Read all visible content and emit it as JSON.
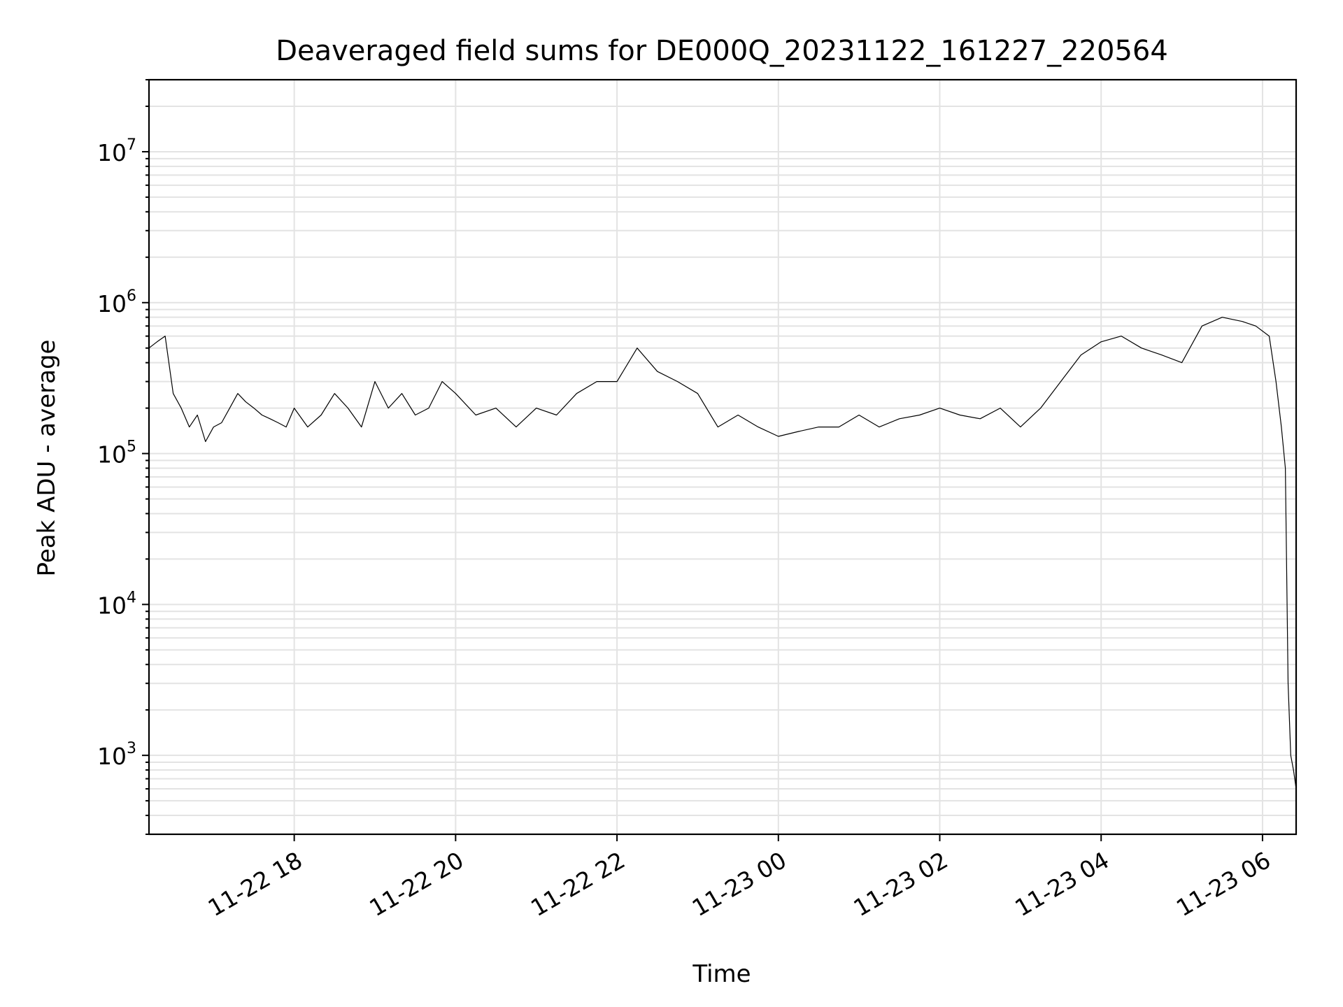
{
  "chart_data": {
    "type": "line",
    "title": "Deaveraged field sums for DE000Q_20231122_161227_220564",
    "xlabel": "Time",
    "ylabel": "Peak ADU - average",
    "yscale": "log",
    "xlim": [
      "2023-11-22 16:12",
      "2023-11-23 06:25"
    ],
    "ylim": [
      300,
      30000000
    ],
    "grid": true,
    "x_ticks": [
      {
        "value": "2023-11-22 18:00",
        "label": "11-22 18"
      },
      {
        "value": "2023-11-22 20:00",
        "label": "11-22 20"
      },
      {
        "value": "2023-11-22 22:00",
        "label": "11-22 22"
      },
      {
        "value": "2023-11-23 00:00",
        "label": "11-23 00"
      },
      {
        "value": "2023-11-23 02:00",
        "label": "11-23 02"
      },
      {
        "value": "2023-11-23 04:00",
        "label": "11-23 04"
      },
      {
        "value": "2023-11-23 06:00",
        "label": "11-23 06"
      }
    ],
    "y_ticks": [
      {
        "value": 1000,
        "base": "10",
        "exp": "3"
      },
      {
        "value": 10000,
        "base": "10",
        "exp": "4"
      },
      {
        "value": 100000,
        "base": "10",
        "exp": "5"
      },
      {
        "value": 1000000,
        "base": "10",
        "exp": "6"
      },
      {
        "value": 10000000,
        "base": "10",
        "exp": "7"
      }
    ],
    "series": [
      {
        "color": "#000000",
        "x": [
          "2023-11-22 16:12",
          "2023-11-22 16:18",
          "2023-11-22 16:24",
          "2023-11-22 16:30",
          "2023-11-22 16:36",
          "2023-11-22 16:42",
          "2023-11-22 16:48",
          "2023-11-22 16:54",
          "2023-11-22 17:00",
          "2023-11-22 17:06",
          "2023-11-22 17:12",
          "2023-11-22 17:18",
          "2023-11-22 17:24",
          "2023-11-22 17:30",
          "2023-11-22 17:36",
          "2023-11-22 17:42",
          "2023-11-22 17:48",
          "2023-11-22 17:54",
          "2023-11-22 18:00",
          "2023-11-22 18:10",
          "2023-11-22 18:20",
          "2023-11-22 18:30",
          "2023-11-22 18:40",
          "2023-11-22 18:50",
          "2023-11-22 19:00",
          "2023-11-22 19:10",
          "2023-11-22 19:20",
          "2023-11-22 19:30",
          "2023-11-22 19:40",
          "2023-11-22 19:50",
          "2023-11-22 20:00",
          "2023-11-22 20:15",
          "2023-11-22 20:30",
          "2023-11-22 20:45",
          "2023-11-22 21:00",
          "2023-11-22 21:15",
          "2023-11-22 21:30",
          "2023-11-22 21:45",
          "2023-11-22 22:00",
          "2023-11-22 22:15",
          "2023-11-22 22:30",
          "2023-11-22 22:45",
          "2023-11-22 23:00",
          "2023-11-22 23:15",
          "2023-11-22 23:30",
          "2023-11-22 23:45",
          "2023-11-23 00:00",
          "2023-11-23 00:15",
          "2023-11-23 00:30",
          "2023-11-23 00:45",
          "2023-11-23 01:00",
          "2023-11-23 01:15",
          "2023-11-23 01:30",
          "2023-11-23 01:45",
          "2023-11-23 02:00",
          "2023-11-23 02:15",
          "2023-11-23 02:30",
          "2023-11-23 02:45",
          "2023-11-23 03:00",
          "2023-11-23 03:15",
          "2023-11-23 03:30",
          "2023-11-23 03:45",
          "2023-11-23 04:00",
          "2023-11-23 04:15",
          "2023-11-23 04:30",
          "2023-11-23 04:45",
          "2023-11-23 05:00",
          "2023-11-23 05:15",
          "2023-11-23 05:30",
          "2023-11-23 05:45",
          "2023-11-23 05:55",
          "2023-11-23 06:05",
          "2023-11-23 06:10",
          "2023-11-23 06:14",
          "2023-11-23 06:17",
          "2023-11-23 06:19",
          "2023-11-23 06:21",
          "2023-11-23 06:23",
          "2023-11-23 06:25"
        ],
        "values": [
          500000,
          550000,
          600000,
          250000,
          200000,
          150000,
          180000,
          120000,
          150000,
          160000,
          200000,
          250000,
          220000,
          200000,
          180000,
          170000,
          160000,
          150000,
          200000,
          150000,
          180000,
          250000,
          200000,
          150000,
          300000,
          200000,
          250000,
          180000,
          200000,
          300000,
          250000,
          180000,
          200000,
          150000,
          200000,
          180000,
          250000,
          300000,
          300000,
          500000,
          350000,
          300000,
          250000,
          150000,
          180000,
          150000,
          130000,
          140000,
          150000,
          150000,
          180000,
          150000,
          170000,
          180000,
          200000,
          180000,
          170000,
          200000,
          150000,
          200000,
          300000,
          450000,
          550000,
          600000,
          500000,
          450000,
          400000,
          700000,
          800000,
          750000,
          700000,
          600000,
          300000,
          150000,
          80000,
          3000,
          1000,
          800,
          600
        ]
      }
    ]
  }
}
